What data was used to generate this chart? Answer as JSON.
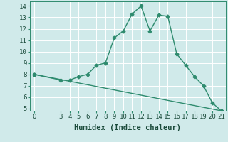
{
  "xlabel": "Humidex (Indice chaleur)",
  "line1_x": [
    0,
    3,
    4,
    5,
    6,
    7,
    8,
    9,
    10,
    11,
    12,
    13,
    14,
    15,
    16,
    17,
    18,
    19,
    20,
    21
  ],
  "line1_y": [
    8.0,
    7.5,
    7.5,
    7.8,
    8.0,
    8.8,
    9.0,
    11.2,
    11.8,
    13.3,
    14.0,
    11.8,
    13.2,
    13.1,
    9.8,
    8.8,
    7.8,
    7.0,
    5.5,
    4.8
  ],
  "line2_x": [
    0,
    21
  ],
  "line2_y": [
    8.0,
    4.8
  ],
  "line_color": "#2e8b6e",
  "bg_color": "#d0eaea",
  "grid_color": "#ffffff",
  "xlim": [
    -0.5,
    21.5
  ],
  "ylim": [
    4.8,
    14.4
  ],
  "xticks": [
    0,
    3,
    4,
    5,
    6,
    7,
    8,
    9,
    10,
    11,
    12,
    13,
    14,
    15,
    16,
    17,
    18,
    19,
    20,
    21
  ],
  "yticks": [
    5,
    6,
    7,
    8,
    9,
    10,
    11,
    12,
    13,
    14
  ],
  "xlabel_fontsize": 7.5,
  "tick_fontsize": 6.5,
  "marker": "D",
  "marker_size": 2.5,
  "linewidth": 1.0
}
